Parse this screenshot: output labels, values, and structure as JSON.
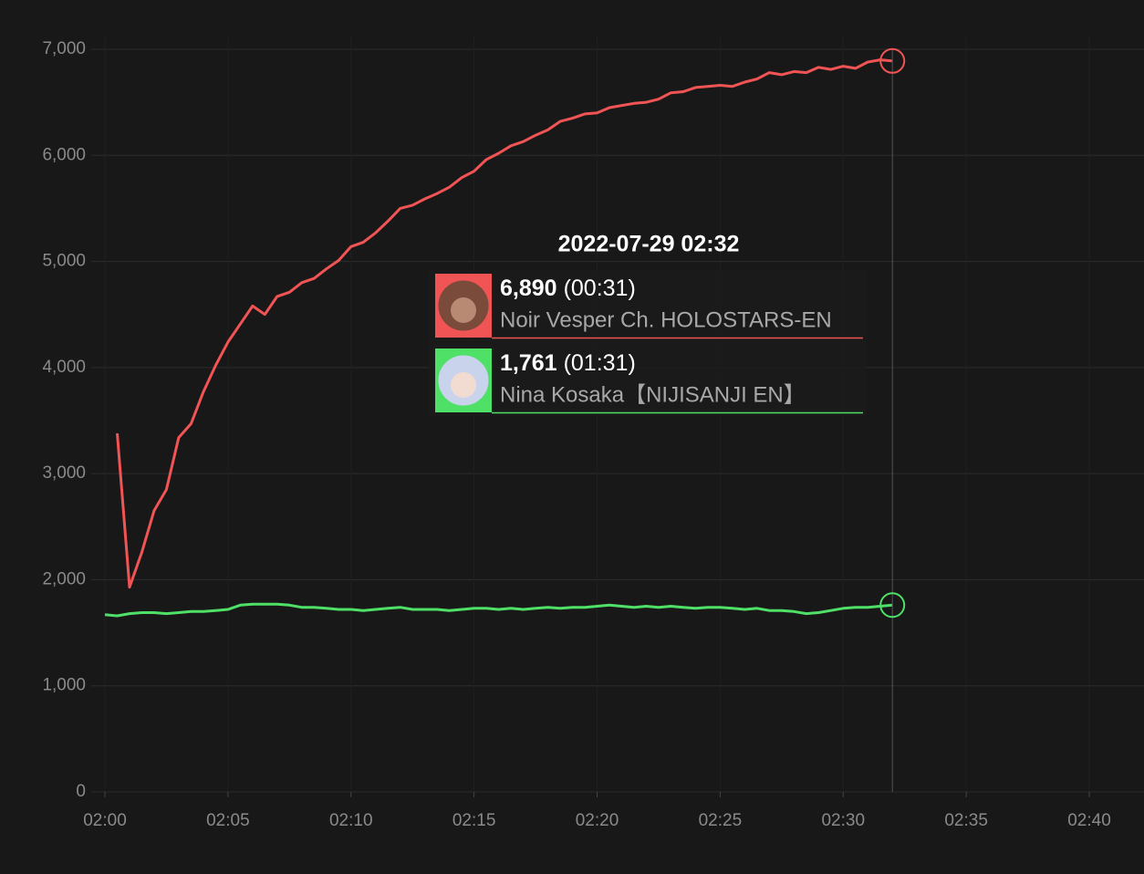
{
  "chart_data": {
    "type": "line",
    "x": [
      "02:00:00",
      "02:00:30",
      "02:01:00",
      "02:01:30",
      "02:02:00",
      "02:02:30",
      "02:03:00",
      "02:03:30",
      "02:04:00",
      "02:04:30",
      "02:05:00",
      "02:05:30",
      "02:06:00",
      "02:06:30",
      "02:07:00",
      "02:07:30",
      "02:08:00",
      "02:08:30",
      "02:09:00",
      "02:09:30",
      "02:10:00",
      "02:10:30",
      "02:11:00",
      "02:11:30",
      "02:12:00",
      "02:12:30",
      "02:13:00",
      "02:13:30",
      "02:14:00",
      "02:14:30",
      "02:15:00",
      "02:15:30",
      "02:16:00",
      "02:16:30",
      "02:17:00",
      "02:17:30",
      "02:18:00",
      "02:18:30",
      "02:19:00",
      "02:19:30",
      "02:20:00",
      "02:20:30",
      "02:21:00",
      "02:21:30",
      "02:22:00",
      "02:22:30",
      "02:23:00",
      "02:23:30",
      "02:24:00",
      "02:24:30",
      "02:25:00",
      "02:25:30",
      "02:26:00",
      "02:26:30",
      "02:27:00",
      "02:27:30",
      "02:28:00",
      "02:28:30",
      "02:29:00",
      "02:29:30",
      "02:30:00",
      "02:30:30",
      "02:31:00",
      "02:31:30",
      "02:32:00"
    ],
    "series": [
      {
        "name": "Noir Vesper Ch. HOLOSTARS-EN",
        "color": "#f05454",
        "values": [
          null,
          3380,
          1930,
          2260,
          2650,
          2850,
          3340,
          3470,
          3770,
          4020,
          4240,
          4410,
          4580,
          4500,
          4670,
          4710,
          4800,
          4840,
          4930,
          5010,
          5140,
          5180,
          5270,
          5380,
          5500,
          5530,
          5590,
          5640,
          5700,
          5790,
          5850,
          5960,
          6020,
          6090,
          6130,
          6190,
          6240,
          6320,
          6350,
          6390,
          6400,
          6450,
          6470,
          6490,
          6500,
          6530,
          6590,
          6600,
          6640,
          6650,
          6660,
          6650,
          6690,
          6720,
          6780,
          6760,
          6790,
          6780,
          6830,
          6810,
          6840,
          6820,
          6880,
          6900,
          6890
        ]
      },
      {
        "name": "Nina Kosaka【NIJISANJI EN】",
        "color": "#4fe067",
        "values": [
          1670,
          1660,
          1680,
          1690,
          1690,
          1680,
          1690,
          1700,
          1700,
          1710,
          1720,
          1760,
          1770,
          1770,
          1770,
          1760,
          1740,
          1740,
          1730,
          1720,
          1720,
          1710,
          1720,
          1730,
          1740,
          1720,
          1720,
          1720,
          1710,
          1720,
          1730,
          1730,
          1720,
          1730,
          1720,
          1730,
          1740,
          1730,
          1740,
          1740,
          1750,
          1760,
          1750,
          1740,
          1750,
          1740,
          1750,
          1740,
          1730,
          1740,
          1740,
          1730,
          1720,
          1730,
          1710,
          1710,
          1700,
          1680,
          1690,
          1710,
          1730,
          1740,
          1740,
          1750,
          1761
        ]
      }
    ],
    "xlim": [
      "02:00",
      "02:40"
    ],
    "xticks": [
      "02:00",
      "02:05",
      "02:10",
      "02:15",
      "02:20",
      "02:25",
      "02:30",
      "02:35",
      "02:40"
    ],
    "ylim": [
      0,
      7000
    ],
    "yticks": [
      0,
      {
        "value": 1000,
        "label": "1,000"
      },
      {
        "value": 2000,
        "label": "2,000"
      },
      {
        "value": 3000,
        "label": "3,000"
      },
      {
        "value": 4000,
        "label": "4,000"
      },
      {
        "value": 5000,
        "label": "5,000"
      },
      {
        "value": 6000,
        "label": "6,000"
      },
      {
        "value": 7000,
        "label": "7,000"
      }
    ],
    "grid": true,
    "tooltip": {
      "title": "2022-07-29 02:32",
      "x": "02:32:00",
      "items": [
        {
          "value": 6890,
          "value_label": "6,890",
          "duration": "(00:31)"
        },
        {
          "value": 1761,
          "value_label": "1,761",
          "duration": "(01:31)"
        }
      ]
    }
  }
}
